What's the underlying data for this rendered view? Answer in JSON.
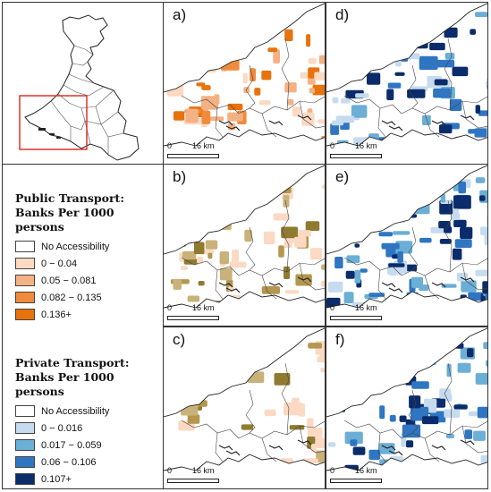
{
  "panels": [
    {
      "label": "a)",
      "scale_zero": "0",
      "scale_text": "16 km"
    },
    {
      "label": "b)",
      "scale_zero": "0",
      "scale_text": "16 km"
    },
    {
      "label": "c)",
      "scale_zero": "0",
      "scale_text": "16 km"
    },
    {
      "label": "d)",
      "scale_zero": "0",
      "scale_text": "16 km"
    },
    {
      "label": "e)",
      "scale_zero": "0",
      "scale_text": "16 km"
    },
    {
      "label": "f)",
      "scale_zero": "0",
      "scale_text": "16 km"
    }
  ],
  "legend_public": {
    "title_line1": "Public Transport:",
    "title_line2": "Banks Per 1000 persons",
    "items": [
      {
        "label": "No Accessibility",
        "color": "#ffffff"
      },
      {
        "label": "0 − 0.04",
        "color": "#fbd9c3"
      },
      {
        "label": "0.05 − 0.081",
        "color": "#f4b183"
      },
      {
        "label": "0.082 − 0.135",
        "color": "#f08a3c"
      },
      {
        "label": "0.136+",
        "color": "#e8720c"
      }
    ]
  },
  "legend_private": {
    "title_line1": "Private Transport:",
    "title_line2": "Banks Per 1000 persons",
    "items": [
      {
        "label": "No Accessibility",
        "color": "#ffffff"
      },
      {
        "label": "0 − 0.016",
        "color": "#c6dbef"
      },
      {
        "label": "0.017 − 0.059",
        "color": "#6baed6"
      },
      {
        "label": "0.06 − 0.106",
        "color": "#2f75c1"
      },
      {
        "label": "0.107+",
        "color": "#0b2c6b"
      }
    ]
  }
}
